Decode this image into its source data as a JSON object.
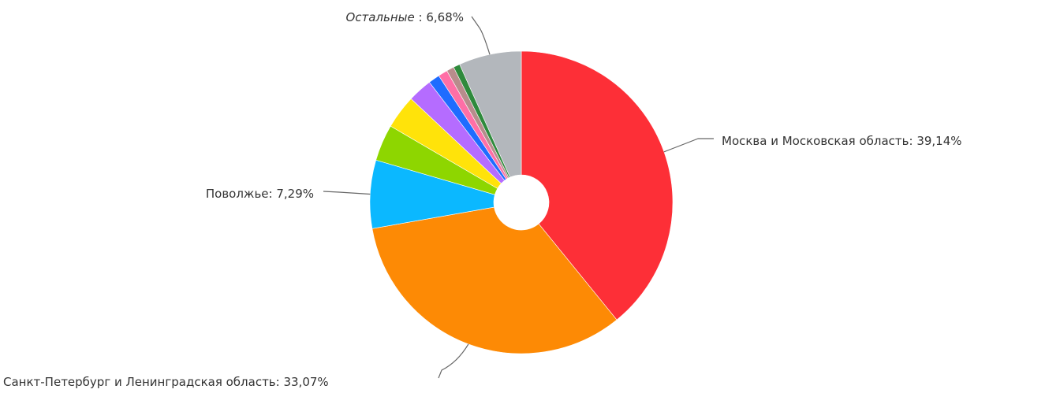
{
  "chart_data": {
    "type": "pie",
    "donut": true,
    "start_angle_deg": 0,
    "direction": "clockwise",
    "slices": [
      {
        "name": "Москва и Московская область",
        "value": 39.14,
        "color": "#fd2f37",
        "label": "Москва и Московская область: 39,14%"
      },
      {
        "name": "Санкт-Петербург и Ленинградская область",
        "value": 33.07,
        "color": "#fd8a05",
        "label": "Санкт-Петербург и Ленинградская область: 33,07%"
      },
      {
        "name": "Поволжье",
        "value": 7.29,
        "color": "#0bb8ff",
        "label": "Поволжье: 7,29%"
      },
      {
        "name": "",
        "value": 3.9,
        "color": "#8ed600",
        "label": ""
      },
      {
        "name": "",
        "value": 3.6,
        "color": "#ffe30a",
        "label": ""
      },
      {
        "name": "",
        "value": 2.6,
        "color": "#b56cff",
        "label": ""
      },
      {
        "name": "",
        "value": 1.2,
        "color": "#1f6cff",
        "label": ""
      },
      {
        "name": "",
        "value": 1.0,
        "color": "#ff6fa6",
        "label": ""
      },
      {
        "name": "",
        "value": 0.8,
        "color": "#b88c8c",
        "label": ""
      },
      {
        "name": "",
        "value": 0.7,
        "color": "#2f8a3c",
        "label": ""
      },
      {
        "name": "Остальные",
        "value": 6.68,
        "color": "#b3b7bc",
        "label": "Остальные : 6,68%",
        "italic_name": true
      }
    ],
    "legend": "none"
  }
}
